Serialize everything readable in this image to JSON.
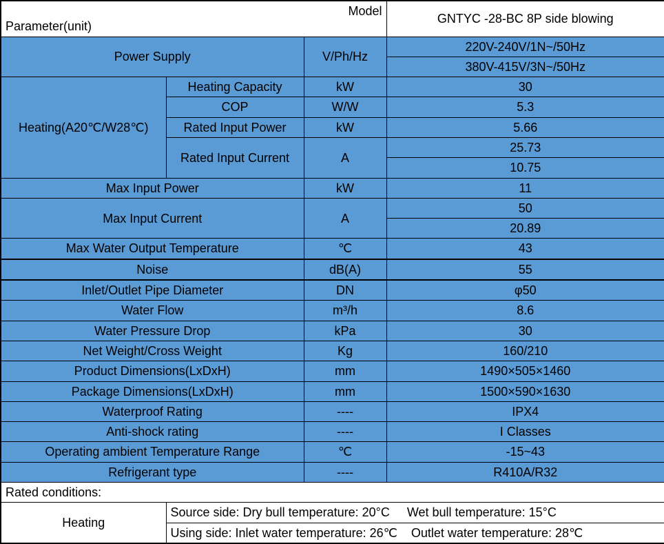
{
  "colors": {
    "header_bg": "#ffffff",
    "row_bg": "#5b9bd5",
    "border": "#000000",
    "text": "#000000"
  },
  "fonts": {
    "family": "Arial, sans-serif",
    "size_pt": 14
  },
  "header": {
    "model_label": "Model",
    "parameter_label": "Parameter(unit)",
    "model_value": "GNTYC -28-BC 8P side blowing"
  },
  "rows": {
    "power_supply": {
      "label": "Power Supply",
      "unit": "V/Ph/Hz",
      "value1": "220V-240V/1N~/50Hz",
      "value2": "380V-415V/3N~/50Hz"
    },
    "heating_group": {
      "label": "Heating(A20℃/W28℃)",
      "heating_capacity": {
        "label": "Heating Capacity",
        "unit": "kW",
        "value": "30"
      },
      "cop": {
        "label": "COP",
        "unit": "W/W",
        "value": "5.3"
      },
      "rated_input_power": {
        "label": "Rated Input Power",
        "unit": "kW",
        "value": "5.66"
      },
      "rated_input_current": {
        "label": "Rated Input Current",
        "unit": "A",
        "value1": "25.73",
        "value2": "10.75"
      }
    },
    "max_input_power": {
      "label": "Max Input Power",
      "unit": "kW",
      "value": "11"
    },
    "max_input_current": {
      "label": "Max Input Current",
      "unit": "A",
      "value1": "50",
      "value2": "20.89"
    },
    "max_water_temp": {
      "label": "Max Water Output Temperature",
      "unit": "℃",
      "value": "43"
    },
    "noise": {
      "label": "Noise",
      "unit": "dB(A)",
      "value": "55"
    },
    "pipe_diameter": {
      "label": "Inlet/Outlet Pipe Diameter",
      "unit": "DN",
      "value": "φ50"
    },
    "water_flow": {
      "label": "Water Flow",
      "unit": "m³/h",
      "value": "8.6"
    },
    "water_pressure_drop": {
      "label": "Water Pressure Drop",
      "unit": "kPa",
      "value": "30"
    },
    "net_weight": {
      "label": "Net Weight/Cross Weight",
      "unit": "Kg",
      "value": "160/210"
    },
    "product_dim": {
      "label": "Product Dimensions(LxDxH)",
      "unit": "mm",
      "value": "1490×505×1460"
    },
    "package_dim": {
      "label": "Package Dimensions(LxDxH)",
      "unit": "mm",
      "value": "1500×590×1630"
    },
    "waterproof": {
      "label": "Waterproof Rating",
      "unit": "----",
      "value": "IPX4"
    },
    "antishock": {
      "label": "Anti-shock rating",
      "unit": "----",
      "value": "I Classes"
    },
    "ambient_temp": {
      "label": "Operating ambient Temperature Range",
      "unit": "℃",
      "value": "-15~43"
    },
    "refrigerant": {
      "label": "Refrigerant type",
      "unit": "----",
      "value": "R410A/R32"
    }
  },
  "conditions": {
    "title": "Rated conditions:",
    "heating_label": "Heating",
    "line1_a": "Source side: Dry bull temperature: 20°C",
    "line1_b": "Wet bull temperature: 15°C",
    "line2_a": "Using side: Inlet water temperature: 26℃",
    "line2_b": "Outlet water temperature: 28℃"
  }
}
